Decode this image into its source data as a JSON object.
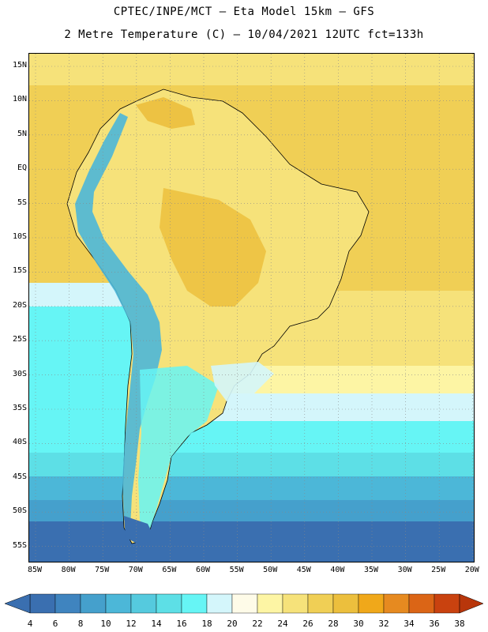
{
  "title_line1": "CPTEC/INPE/MCT –  Eta Model 15km – GFS",
  "title_line2": "2 Metre Temperature (C) – 10/04/2021 12UTC fct=133h",
  "lat_ticks": [
    "15N",
    "10N",
    "5N",
    "EQ",
    "5S",
    "10S",
    "15S",
    "20S",
    "25S",
    "30S",
    "35S",
    "40S",
    "45S",
    "50S",
    "55S"
  ],
  "lon_ticks": [
    "85W",
    "80W",
    "75W",
    "70W",
    "65W",
    "60W",
    "55W",
    "50W",
    "45W",
    "40W",
    "35W",
    "30W",
    "25W",
    "20W"
  ],
  "colorbar": {
    "labels": [
      "4",
      "6",
      "8",
      "10",
      "12",
      "14",
      "16",
      "18",
      "20",
      "22",
      "24",
      "26",
      "28",
      "30",
      "32",
      "34",
      "36",
      "38"
    ],
    "colors": [
      "#3a6fb0",
      "#3f84bf",
      "#45a0cc",
      "#4cb7d8",
      "#55cade",
      "#5ddfe6",
      "#66f5f5",
      "#d4f6fb",
      "#fefbe8",
      "#fdf5a4",
      "#f6e27a",
      "#f0cf55",
      "#ecbf3d",
      "#f0a81a",
      "#e68a20",
      "#db6516",
      "#c9420f"
    ],
    "low_arrow_color": "#3a6fb0",
    "high_arrow_color": "#b8360b"
  },
  "map_colors": {
    "ocean_cold": "#3a6fb0",
    "ocean_cool": "#55cade",
    "ocean_cyan": "#66f5f5",
    "ocean_pale": "#d4f6fb",
    "ocean_warm": "#f0cf55",
    "land_warm": "#f6e27a",
    "land_hot": "#ecbf3d",
    "andes": "#4cb7d8"
  }
}
